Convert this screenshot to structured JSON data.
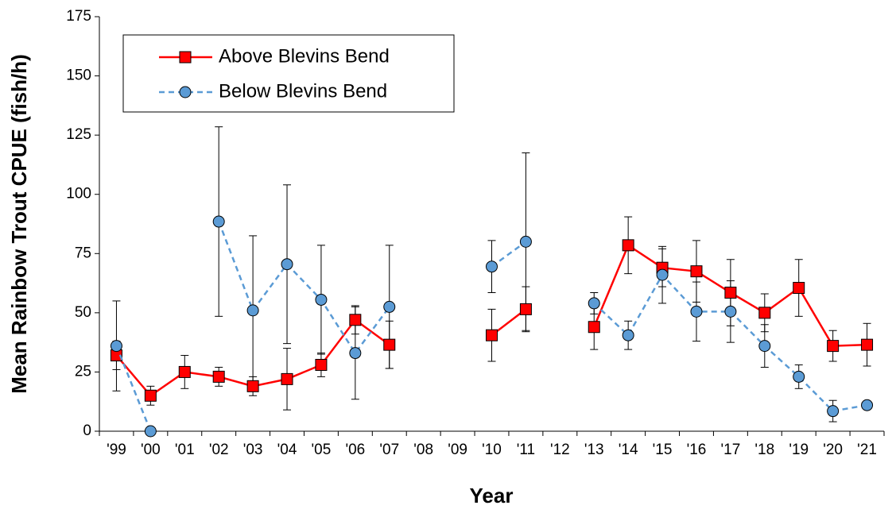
{
  "chart_data": {
    "type": "line",
    "x_label": "Year",
    "y_label": "Mean Rainbow Trout CPUE (fish/h)",
    "categories": [
      "'99",
      "'00",
      "'01",
      "'02",
      "'03",
      "'04",
      "'05",
      "'06",
      "'07",
      "'08",
      "'09",
      "'10",
      "'11",
      "'12",
      "'13",
      "'14",
      "'15",
      "'16",
      "'17",
      "'18",
      "'19",
      "'20",
      "'21"
    ],
    "ylim": [
      0,
      175
    ],
    "yticks": [
      0,
      25,
      50,
      75,
      100,
      125,
      150,
      175
    ],
    "legend": "upper left",
    "series": [
      {
        "name": "Above Blevins Bend",
        "color": "#ff0000",
        "marker": "square",
        "dashed": false,
        "values": [
          32,
          15,
          25,
          23,
          19,
          22,
          28,
          47,
          36.5,
          null,
          null,
          40.5,
          51.5,
          null,
          44,
          78.5,
          69,
          67.5,
          58.5,
          50,
          60.5,
          36,
          36.5
        ],
        "errors": [
          6,
          4,
          7,
          4,
          4,
          13,
          5,
          6,
          10,
          null,
          null,
          11,
          9.5,
          null,
          9.5,
          12,
          8,
          13,
          14,
          8,
          12,
          6.5,
          9
        ]
      },
      {
        "name": "Below Blevins Bend",
        "color": "#5b9bd5",
        "marker": "circle",
        "dashed": true,
        "values": [
          36,
          0,
          null,
          88.5,
          51,
          70.5,
          55.5,
          33,
          52.5,
          null,
          null,
          69.5,
          80,
          null,
          54,
          40.5,
          66,
          50.5,
          50.5,
          36,
          23,
          8.5,
          11
        ],
        "errors": [
          19,
          0,
          null,
          40,
          31.5,
          33.5,
          23,
          19.5,
          26,
          null,
          null,
          11,
          37.5,
          null,
          4.5,
          6,
          12,
          12.5,
          13,
          9,
          5,
          4.5,
          0
        ]
      }
    ]
  }
}
